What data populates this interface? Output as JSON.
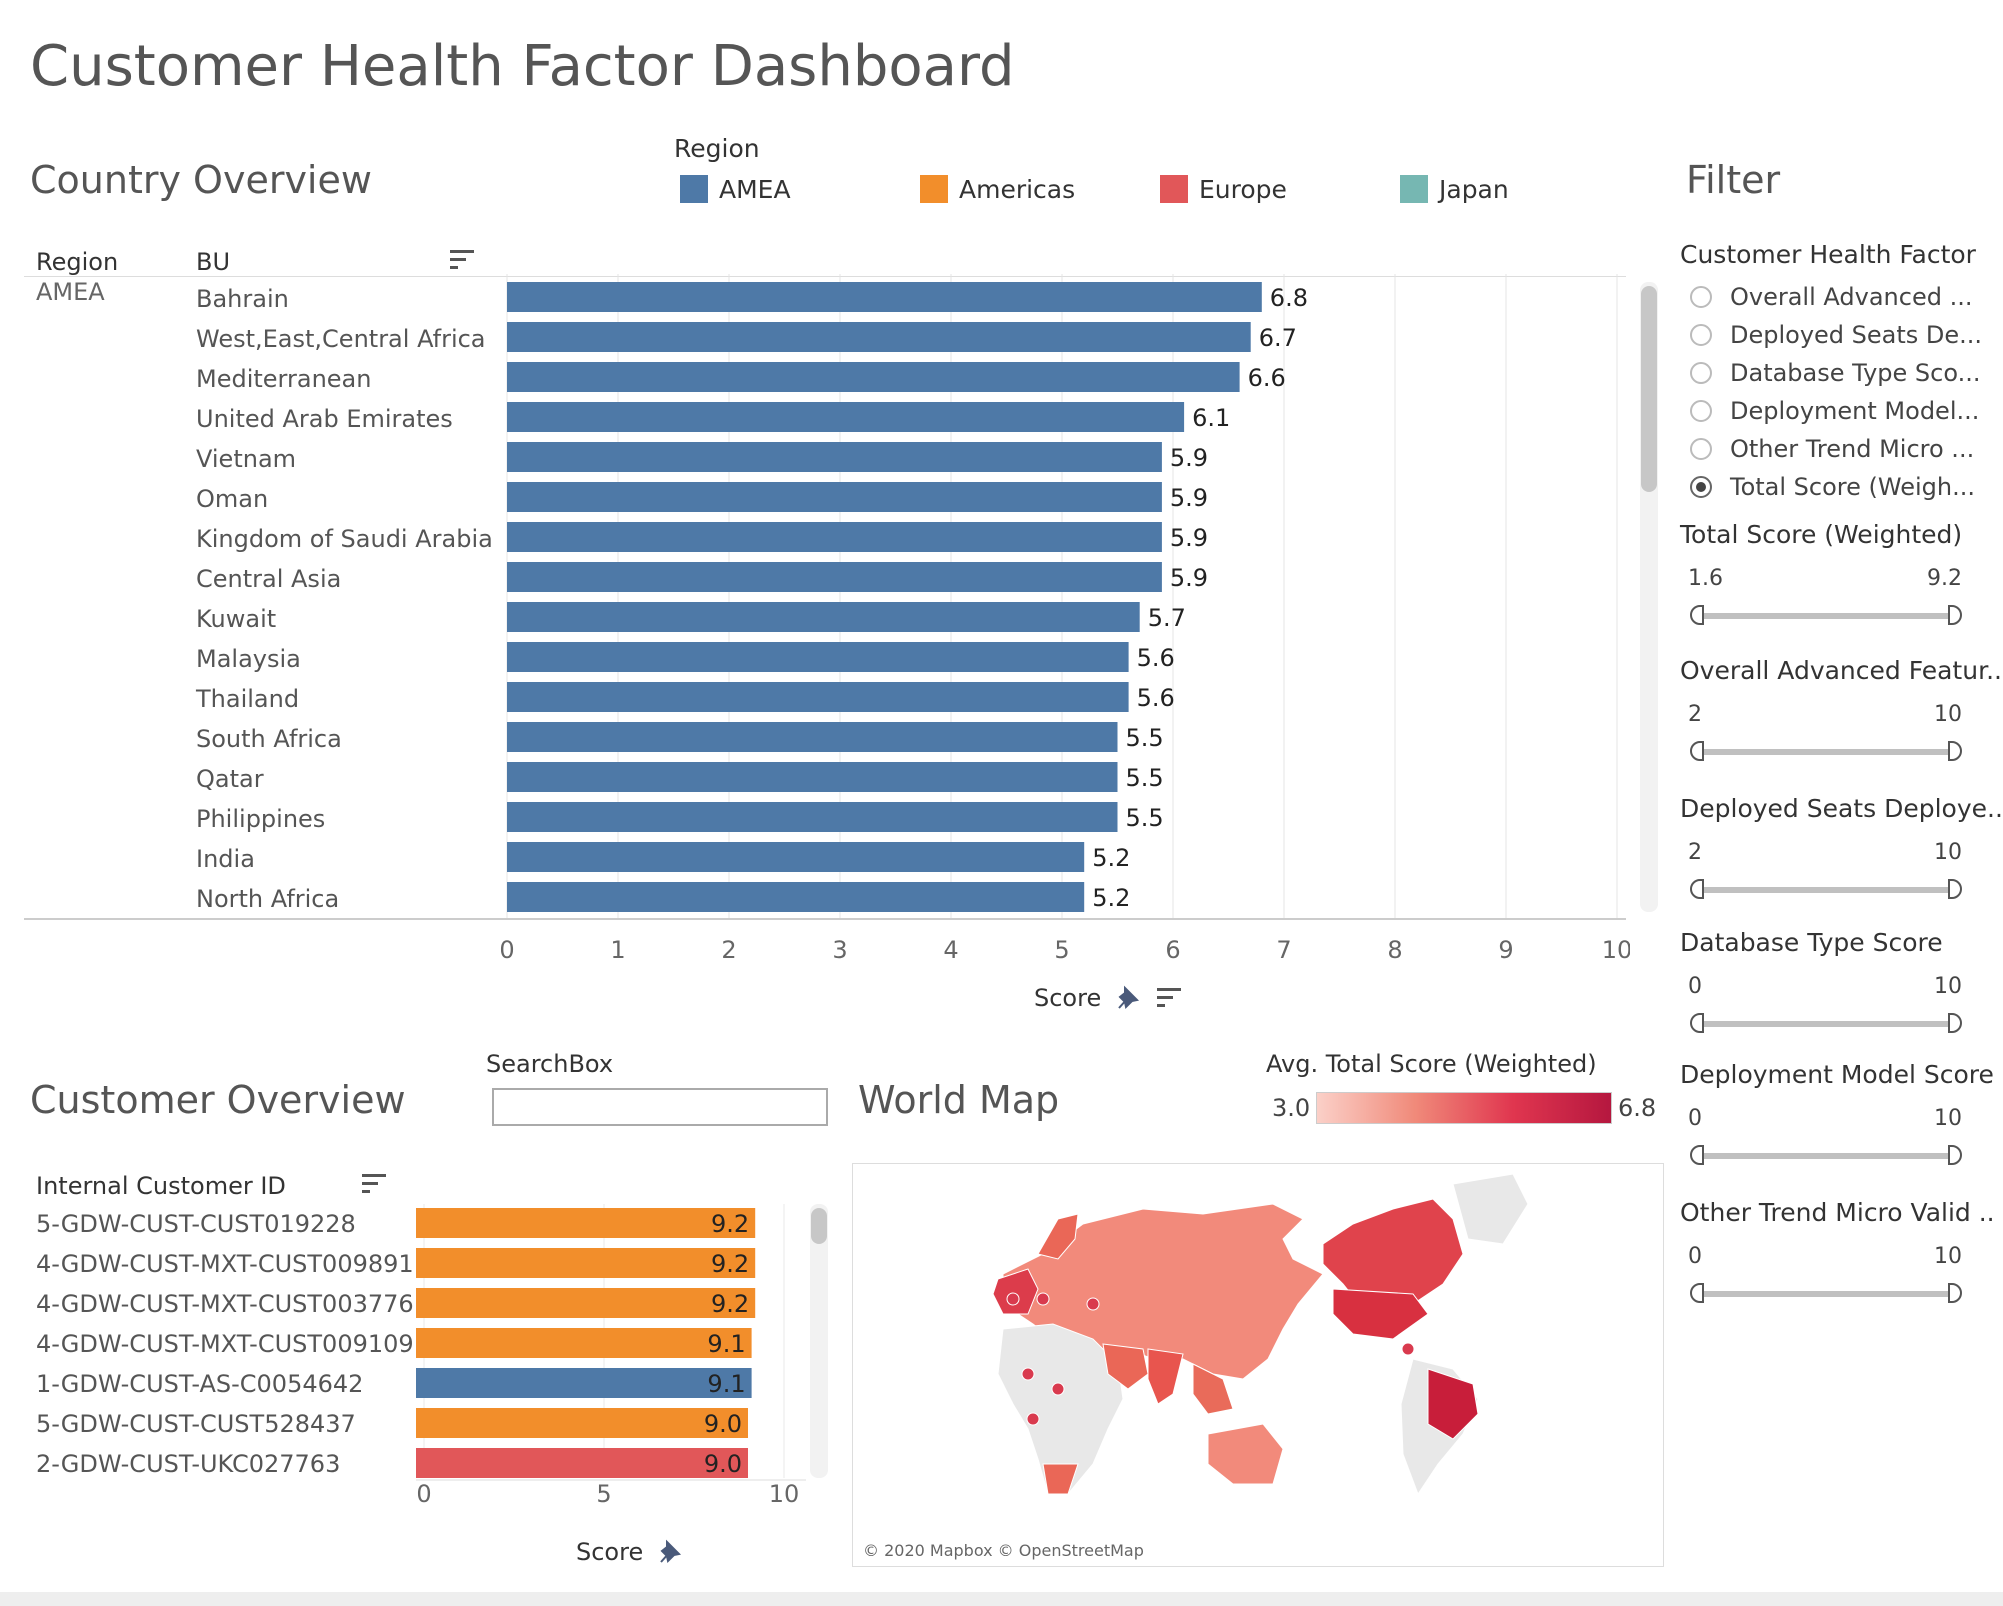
{
  "dashboard": {
    "title": "Customer Health Factor Dashboard"
  },
  "colors": {
    "AMEA": "#4e79a7",
    "Americas": "#f28e2b",
    "Europe": "#e15759",
    "Japan": "#76b7b2"
  },
  "legend": {
    "title": "Region",
    "items": [
      {
        "label": "AMEA",
        "color": "#4e79a7"
      },
      {
        "label": "Americas",
        "color": "#f28e2b"
      },
      {
        "label": "Europe",
        "color": "#e15759"
      },
      {
        "label": "Japan",
        "color": "#76b7b2"
      }
    ]
  },
  "country_overview": {
    "title": "Country Overview",
    "col_region": "Region",
    "col_bu": "BU",
    "region_value": "AMEA",
    "axis_label": "Score",
    "chart_data": {
      "type": "bar",
      "orientation": "horizontal",
      "categories": [
        "Bahrain",
        "West,East,Central Africa",
        "Mediterranean",
        "United Arab Emirates",
        "Vietnam",
        "Oman",
        "Kingdom of Saudi Arabia",
        "Central Asia",
        "Kuwait",
        "Malaysia",
        "Thailand",
        "South Africa",
        "Qatar",
        "Philippines",
        "India",
        "North Africa"
      ],
      "values": [
        6.8,
        6.7,
        6.6,
        6.1,
        5.9,
        5.9,
        5.9,
        5.9,
        5.7,
        5.6,
        5.6,
        5.5,
        5.5,
        5.5,
        5.2,
        5.2
      ],
      "value_labels": [
        "6.8",
        "6.7",
        "6.6",
        "6.1",
        "5.9",
        "5.9",
        "5.9",
        "5.9",
        "5.7",
        "5.6",
        "5.6",
        "5.5",
        "5.5",
        "5.5",
        "5.2",
        "5.2"
      ],
      "series_color": "#4e79a7",
      "xlabel": "Score",
      "xlim": [
        0,
        10
      ],
      "ticks": [
        0,
        1,
        2,
        3,
        4,
        5,
        6,
        7,
        8,
        9,
        10
      ],
      "grid": true
    }
  },
  "filter": {
    "title": "Filter",
    "factor_heading": "Customer Health Factor",
    "options": [
      {
        "label": "Overall Advanced ...",
        "checked": false
      },
      {
        "label": "Deployed Seats De...",
        "checked": false
      },
      {
        "label": "Database Type Sco...",
        "checked": false
      },
      {
        "label": "Deployment Model...",
        "checked": false
      },
      {
        "label": "Other Trend Micro ...",
        "checked": false
      },
      {
        "label": "Total Score (Weigh...",
        "checked": true
      }
    ],
    "ranges": [
      {
        "label": "Total Score (Weighted)",
        "min": "1.6",
        "max": "9.2"
      },
      {
        "label": "Overall Advanced Featur..",
        "min": "2",
        "max": "10"
      },
      {
        "label": "Deployed Seats Deploye..",
        "min": "2",
        "max": "10"
      },
      {
        "label": "Database Type Score",
        "min": "0",
        "max": "10"
      },
      {
        "label": "Deployment Model Score",
        "min": "0",
        "max": "10"
      },
      {
        "label": "Other Trend Micro Valid ..",
        "min": "0",
        "max": "10"
      }
    ]
  },
  "customer_overview": {
    "title": "Customer Overview",
    "search_label": "SearchBox",
    "search_value": "",
    "col_id": "Internal Customer ID",
    "axis_label": "Score",
    "chart_data": {
      "type": "bar",
      "orientation": "horizontal",
      "categories": [
        "5-GDW-CUST-CUST019228",
        "4-GDW-CUST-MXT-CUST009891",
        "4-GDW-CUST-MXT-CUST003776",
        "4-GDW-CUST-MXT-CUST009109",
        "1-GDW-CUST-AS-C0054642",
        "5-GDW-CUST-CUST528437",
        "2-GDW-CUST-UKC027763"
      ],
      "values": [
        9.2,
        9.2,
        9.2,
        9.1,
        9.1,
        9.0,
        9.0
      ],
      "value_labels": [
        "9.2",
        "9.2",
        "9.2",
        "9.1",
        "9.1",
        "9.0",
        "9.0"
      ],
      "regions": [
        "Americas",
        "Americas",
        "Americas",
        "Americas",
        "AMEA",
        "Americas",
        "Europe"
      ],
      "xlabel": "Score",
      "xlim": [
        0,
        10
      ],
      "ticks": [
        0,
        5,
        10
      ]
    }
  },
  "world_map": {
    "title": "World Map",
    "legend_title": "Avg. Total Score (Weighted)",
    "min_label": "3.0",
    "max_label": "6.8",
    "credit": "© 2020 Mapbox © OpenStreetMap"
  }
}
